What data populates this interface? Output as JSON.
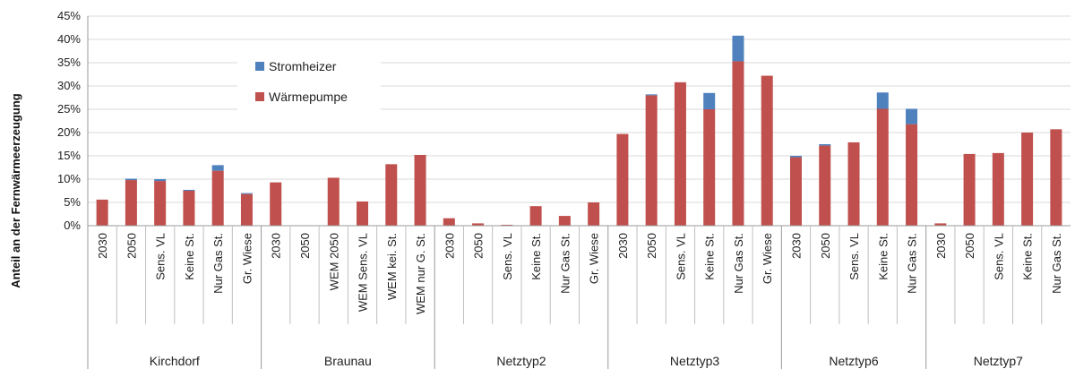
{
  "chart_data": {
    "type": "bar",
    "stacked": true,
    "ylabel": "Anteil an der Fernwärmeerzeugung",
    "ylim": [
      0,
      45
    ],
    "y_ticks": [
      "0%",
      "5%",
      "10%",
      "15%",
      "20%",
      "25%",
      "30%",
      "35%",
      "40%",
      "45%"
    ],
    "grid": true,
    "legend_position": "top-left inside",
    "colors": {
      "Wärmepumpe": "#C0504D",
      "Stromheizer": "#4F81BD"
    },
    "groups": [
      {
        "name": "Kirchdorf",
        "categories": [
          "2030",
          "2050",
          "Sens. VL",
          "Keine St.",
          "Nur Gas St.",
          "Gr. Wiese"
        ]
      },
      {
        "name": "Braunau",
        "categories": [
          "2030",
          "2050",
          "WEM 2050",
          "WEM Sens. VL",
          "WEM kei. St.",
          "WEM nur G. St."
        ]
      },
      {
        "name": "Netztyp2",
        "categories": [
          "2030",
          "2050",
          "Sens. VL",
          "Keine St.",
          "Nur Gas St.",
          "Gr. Wiese"
        ]
      },
      {
        "name": "Netztyp3",
        "categories": [
          "2030",
          "2050",
          "Sens. VL",
          "Keine St.",
          "Nur Gas St.",
          "Gr. Wiese"
        ]
      },
      {
        "name": "Netztyp6",
        "categories": [
          "2030",
          "2050",
          "Sens. VL",
          "Keine St.",
          "Nur Gas St."
        ]
      },
      {
        "name": "Netztyp7",
        "categories": [
          "2030",
          "2050",
          "Sens. VL",
          "Keine St.",
          "Nur Gas St."
        ]
      }
    ],
    "series": [
      {
        "name": "Stromheizer",
        "values": [
          0,
          0.3,
          0.4,
          0.2,
          1.2,
          0.2,
          0,
          0,
          0,
          0,
          0,
          0,
          0,
          0,
          0,
          0,
          0,
          0,
          0,
          0.2,
          0,
          3.5,
          5.5,
          0,
          0.3,
          0.3,
          0,
          3.5,
          3.3,
          0,
          0,
          0,
          0,
          0
        ]
      },
      {
        "name": "Wärmepumpe",
        "values": [
          5.6,
          9.8,
          9.6,
          7.5,
          11.8,
          6.8,
          9.3,
          0,
          10.3,
          5.2,
          13.2,
          15.2,
          1.6,
          0.5,
          0.2,
          4.2,
          2.1,
          5.0,
          19.7,
          28.0,
          30.8,
          25.0,
          35.3,
          32.2,
          14.7,
          17.2,
          17.9,
          25.1,
          21.8,
          0.5,
          15.4,
          15.6,
          20.0,
          20.7
        ]
      }
    ]
  }
}
